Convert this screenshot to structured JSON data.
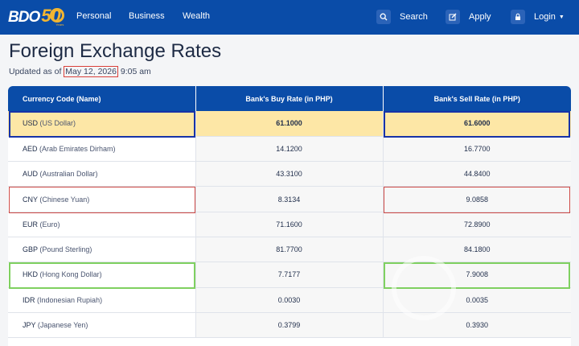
{
  "brand": {
    "name": "BDO",
    "anniversary": "50",
    "years_label": "Years"
  },
  "nav": {
    "links": [
      "Personal",
      "Business",
      "Wealth"
    ],
    "search_label": "Search",
    "apply_label": "Apply",
    "login_label": "Login"
  },
  "page": {
    "title": "Foreign Exchange Rates",
    "updated_prefix": "Updated as of ",
    "updated_date": "May 12, 2026",
    "updated_time": " 9:05 am"
  },
  "table": {
    "headers": [
      "Currency Code (Name)",
      "Bank's Buy Rate (in PHP)",
      "Bank's Sell Rate (in PHP)"
    ],
    "rows": [
      {
        "code": "USD",
        "name": "(US Dollar)",
        "buy": "61.1000",
        "sell": "61.6000"
      },
      {
        "code": "AED",
        "name": "(Arab Emirates Dirham)",
        "buy": "14.1200",
        "sell": "16.7700"
      },
      {
        "code": "AUD",
        "name": "(Australian Dollar)",
        "buy": "43.3100",
        "sell": "44.8400"
      },
      {
        "code": "CNY",
        "name": "(Chinese Yuan)",
        "buy": "8.3134",
        "sell": "9.0858"
      },
      {
        "code": "EUR",
        "name": "(Euro)",
        "buy": "71.1600",
        "sell": "72.8900"
      },
      {
        "code": "GBP",
        "name": "(Pound Sterling)",
        "buy": "81.7700",
        "sell": "84.1800"
      },
      {
        "code": "HKD",
        "name": "(Hong Kong Dollar)",
        "buy": "7.7177",
        "sell": "7.9008"
      },
      {
        "code": "IDR",
        "name": "(Indonesian Rupiah)",
        "buy": "0.0030",
        "sell": "0.0035"
      },
      {
        "code": "JPY",
        "name": "(Japanese Yen)",
        "buy": "0.3799",
        "sell": "0.3930"
      }
    ]
  },
  "colors": {
    "nav_bg": "#0a4ca8",
    "highlight_yellow": "#fde7a6",
    "outline_blue": "#1733a8",
    "outline_red": "#cf4a46",
    "outline_green": "#7fd060",
    "logo_gold": "#f2b531"
  },
  "icons": {
    "search": "search-icon",
    "apply": "edit-icon",
    "login": "lock-icon",
    "dropdown": "caret-down-icon"
  }
}
